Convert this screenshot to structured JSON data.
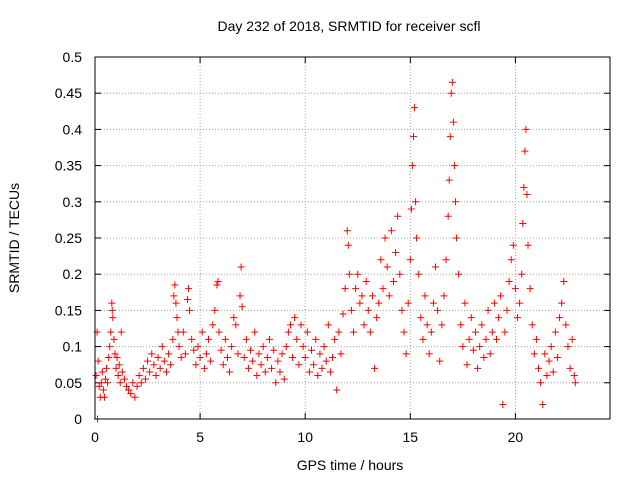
{
  "chart_data": {
    "type": "scatter",
    "title": "Day 232 of 2018, SRMTID for receiver scfl",
    "xlabel": "GPS time / hours",
    "ylabel": "SRMTID / TECUs",
    "xlim": [
      0,
      24.5
    ],
    "ylim": [
      0,
      0.5
    ],
    "xticks": [
      0,
      5,
      10,
      15,
      20
    ],
    "xtick_labels": [
      "0",
      "5",
      "10",
      "15",
      "20"
    ],
    "yticks": [
      0,
      0.05,
      0.1,
      0.15,
      0.2,
      0.25,
      0.3,
      0.35,
      0.4,
      0.45,
      0.5
    ],
    "ytick_labels": [
      "0",
      "0.05",
      "0.1",
      "0.15",
      "0.2",
      "0.25",
      "0.3",
      "0.35",
      "0.4",
      "0.45",
      "0.5"
    ],
    "grid": true,
    "marker": "+",
    "marker_color": "#ff0000",
    "series": [
      {
        "name": "SRMTID",
        "points": [
          [
            0.05,
            0.06
          ],
          [
            0.1,
            0.12
          ],
          [
            0.12,
            0.0
          ],
          [
            0.15,
            0.08
          ],
          [
            0.2,
            0.045
          ],
          [
            0.25,
            0.03
          ],
          [
            0.3,
            0.05
          ],
          [
            0.35,
            0.065
          ],
          [
            0.4,
            0.04
          ],
          [
            0.45,
            0.03
          ],
          [
            0.5,
            0.055
          ],
          [
            0.55,
            0.07
          ],
          [
            0.6,
            0.05
          ],
          [
            0.65,
            0.085
          ],
          [
            0.7,
            0.1
          ],
          [
            0.75,
            0.12
          ],
          [
            0.8,
            0.16
          ],
          [
            0.82,
            0.15
          ],
          [
            0.85,
            0.14
          ],
          [
            0.9,
            0.11
          ],
          [
            0.95,
            0.09
          ],
          [
            1.0,
            0.07
          ],
          [
            1.05,
            0.085
          ],
          [
            1.1,
            0.06
          ],
          [
            1.15,
            0.075
          ],
          [
            1.2,
            0.05
          ],
          [
            1.25,
            0.12
          ],
          [
            1.3,
            0.065
          ],
          [
            1.4,
            0.055
          ],
          [
            1.5,
            0.045
          ],
          [
            1.6,
            0.04
          ],
          [
            1.7,
            0.035
          ],
          [
            1.8,
            0.05
          ],
          [
            1.9,
            0.03
          ],
          [
            2.0,
            0.045
          ],
          [
            2.1,
            0.06
          ],
          [
            2.2,
            0.05
          ],
          [
            2.3,
            0.07
          ],
          [
            2.4,
            0.055
          ],
          [
            2.5,
            0.08
          ],
          [
            2.6,
            0.065
          ],
          [
            2.7,
            0.09
          ],
          [
            2.8,
            0.075
          ],
          [
            2.9,
            0.06
          ],
          [
            3.0,
            0.085
          ],
          [
            3.1,
            0.07
          ],
          [
            3.2,
            0.1
          ],
          [
            3.3,
            0.08
          ],
          [
            3.4,
            0.065
          ],
          [
            3.5,
            0.09
          ],
          [
            3.6,
            0.075
          ],
          [
            3.7,
            0.11
          ],
          [
            3.75,
            0.17
          ],
          [
            3.8,
            0.185
          ],
          [
            3.85,
            0.16
          ],
          [
            3.9,
            0.14
          ],
          [
            3.95,
            0.12
          ],
          [
            4.0,
            0.1
          ],
          [
            4.1,
            0.085
          ],
          [
            4.2,
            0.12
          ],
          [
            4.3,
            0.09
          ],
          [
            4.4,
            0.165
          ],
          [
            4.45,
            0.18
          ],
          [
            4.5,
            0.15
          ],
          [
            4.6,
            0.11
          ],
          [
            4.7,
            0.095
          ],
          [
            4.8,
            0.075
          ],
          [
            4.9,
            0.1
          ],
          [
            5.0,
            0.085
          ],
          [
            5.1,
            0.12
          ],
          [
            5.2,
            0.07
          ],
          [
            5.3,
            0.09
          ],
          [
            5.4,
            0.11
          ],
          [
            5.5,
            0.08
          ],
          [
            5.6,
            0.13
          ],
          [
            5.7,
            0.15
          ],
          [
            5.8,
            0.185
          ],
          [
            5.85,
            0.19
          ],
          [
            5.9,
            0.12
          ],
          [
            6.0,
            0.095
          ],
          [
            6.1,
            0.075
          ],
          [
            6.2,
            0.11
          ],
          [
            6.3,
            0.085
          ],
          [
            6.4,
            0.065
          ],
          [
            6.5,
            0.1
          ],
          [
            6.6,
            0.14
          ],
          [
            6.7,
            0.13
          ],
          [
            6.8,
            0.09
          ],
          [
            6.9,
            0.17
          ],
          [
            6.95,
            0.21
          ],
          [
            7.0,
            0.155
          ],
          [
            7.1,
            0.085
          ],
          [
            7.2,
            0.11
          ],
          [
            7.3,
            0.07
          ],
          [
            7.4,
            0.095
          ],
          [
            7.5,
            0.08
          ],
          [
            7.6,
            0.12
          ],
          [
            7.7,
            0.06
          ],
          [
            7.8,
            0.09
          ],
          [
            7.9,
            0.075
          ],
          [
            8.0,
            0.1
          ],
          [
            8.1,
            0.065
          ],
          [
            8.2,
            0.085
          ],
          [
            8.3,
            0.11
          ],
          [
            8.4,
            0.07
          ],
          [
            8.5,
            0.095
          ],
          [
            8.6,
            0.05
          ],
          [
            8.7,
            0.08
          ],
          [
            8.8,
            0.065
          ],
          [
            8.9,
            0.09
          ],
          [
            9.0,
            0.055
          ],
          [
            9.1,
            0.1
          ],
          [
            9.2,
            0.12
          ],
          [
            9.3,
            0.13
          ],
          [
            9.4,
            0.085
          ],
          [
            9.5,
            0.14
          ],
          [
            9.6,
            0.11
          ],
          [
            9.7,
            0.075
          ],
          [
            9.8,
            0.13
          ],
          [
            9.9,
            0.1
          ],
          [
            10.0,
            0.085
          ],
          [
            10.1,
            0.12
          ],
          [
            10.2,
            0.065
          ],
          [
            10.3,
            0.095
          ],
          [
            10.4,
            0.075
          ],
          [
            10.5,
            0.11
          ],
          [
            10.6,
            0.06
          ],
          [
            10.7,
            0.09
          ],
          [
            10.8,
            0.07
          ],
          [
            10.9,
            0.1
          ],
          [
            11.0,
            0.08
          ],
          [
            11.1,
            0.13
          ],
          [
            11.2,
            0.065
          ],
          [
            11.3,
            0.085
          ],
          [
            11.4,
            0.11
          ],
          [
            11.5,
            0.04
          ],
          [
            11.6,
            0.12
          ],
          [
            11.7,
            0.09
          ],
          [
            11.8,
            0.145
          ],
          [
            11.9,
            0.18
          ],
          [
            12.0,
            0.26
          ],
          [
            12.05,
            0.24
          ],
          [
            12.1,
            0.2
          ],
          [
            12.2,
            0.15
          ],
          [
            12.3,
            0.12
          ],
          [
            12.4,
            0.18
          ],
          [
            12.5,
            0.2
          ],
          [
            12.6,
            0.16
          ],
          [
            12.7,
            0.17
          ],
          [
            12.8,
            0.13
          ],
          [
            12.9,
            0.19
          ],
          [
            13.0,
            0.15
          ],
          [
            13.1,
            0.12
          ],
          [
            13.2,
            0.17
          ],
          [
            13.3,
            0.07
          ],
          [
            13.4,
            0.14
          ],
          [
            13.5,
            0.16
          ],
          [
            13.6,
            0.22
          ],
          [
            13.7,
            0.18
          ],
          [
            13.8,
            0.25
          ],
          [
            13.9,
            0.21
          ],
          [
            14.0,
            0.17
          ],
          [
            14.1,
            0.26
          ],
          [
            14.2,
            0.19
          ],
          [
            14.3,
            0.23
          ],
          [
            14.4,
            0.28
          ],
          [
            14.5,
            0.2
          ],
          [
            14.6,
            0.15
          ],
          [
            14.7,
            0.12
          ],
          [
            14.8,
            0.09
          ],
          [
            14.9,
            0.16
          ],
          [
            15.0,
            0.22
          ],
          [
            15.05,
            0.29
          ],
          [
            15.1,
            0.35
          ],
          [
            15.15,
            0.39
          ],
          [
            15.2,
            0.43
          ],
          [
            15.25,
            0.3
          ],
          [
            15.3,
            0.25
          ],
          [
            15.4,
            0.2
          ],
          [
            15.5,
            0.14
          ],
          [
            15.6,
            0.11
          ],
          [
            15.7,
            0.17
          ],
          [
            15.8,
            0.13
          ],
          [
            15.9,
            0.09
          ],
          [
            16.0,
            0.12
          ],
          [
            16.1,
            0.16
          ],
          [
            16.2,
            0.21
          ],
          [
            16.3,
            0.15
          ],
          [
            16.4,
            0.08
          ],
          [
            16.5,
            0.13
          ],
          [
            16.6,
            0.17
          ],
          [
            16.7,
            0.22
          ],
          [
            16.8,
            0.28
          ],
          [
            16.85,
            0.33
          ],
          [
            16.9,
            0.39
          ],
          [
            16.95,
            0.45
          ],
          [
            17.0,
            0.465
          ],
          [
            17.05,
            0.41
          ],
          [
            17.1,
            0.35
          ],
          [
            17.15,
            0.3
          ],
          [
            17.2,
            0.25
          ],
          [
            17.3,
            0.2
          ],
          [
            17.4,
            0.13
          ],
          [
            17.5,
            0.1
          ],
          [
            17.6,
            0.16
          ],
          [
            17.7,
            0.075
          ],
          [
            17.8,
            0.11
          ],
          [
            17.9,
            0.14
          ],
          [
            18.0,
            0.095
          ],
          [
            18.1,
            0.12
          ],
          [
            18.2,
            0.07
          ],
          [
            18.3,
            0.1
          ],
          [
            18.4,
            0.13
          ],
          [
            18.5,
            0.085
          ],
          [
            18.6,
            0.11
          ],
          [
            18.7,
            0.15
          ],
          [
            18.8,
            0.09
          ],
          [
            18.9,
            0.12
          ],
          [
            19.0,
            0.16
          ],
          [
            19.1,
            0.11
          ],
          [
            19.2,
            0.14
          ],
          [
            19.3,
            0.17
          ],
          [
            19.4,
            0.02
          ],
          [
            19.5,
            0.12
          ],
          [
            19.6,
            0.15
          ],
          [
            19.7,
            0.19
          ],
          [
            19.8,
            0.22
          ],
          [
            19.9,
            0.24
          ],
          [
            20.0,
            0.18
          ],
          [
            20.1,
            0.14
          ],
          [
            20.2,
            0.16
          ],
          [
            20.3,
            0.2
          ],
          [
            20.35,
            0.27
          ],
          [
            20.4,
            0.32
          ],
          [
            20.45,
            0.37
          ],
          [
            20.5,
            0.4
          ],
          [
            20.55,
            0.31
          ],
          [
            20.6,
            0.24
          ],
          [
            20.7,
            0.18
          ],
          [
            20.8,
            0.13
          ],
          [
            20.9,
            0.09
          ],
          [
            21.0,
            0.11
          ],
          [
            21.1,
            0.07
          ],
          [
            21.2,
            0.05
          ],
          [
            21.3,
            0.02
          ],
          [
            21.4,
            0.09
          ],
          [
            21.5,
            0.06
          ],
          [
            21.6,
            0.08
          ],
          [
            21.7,
            0.1
          ],
          [
            21.8,
            0.065
          ],
          [
            21.9,
            0.12
          ],
          [
            22.0,
            0.085
          ],
          [
            22.1,
            0.14
          ],
          [
            22.2,
            0.16
          ],
          [
            22.3,
            0.19
          ],
          [
            22.4,
            0.13
          ],
          [
            22.5,
            0.1
          ],
          [
            22.6,
            0.07
          ],
          [
            22.7,
            0.11
          ],
          [
            22.8,
            0.06
          ],
          [
            22.85,
            0.05
          ]
        ]
      }
    ]
  }
}
